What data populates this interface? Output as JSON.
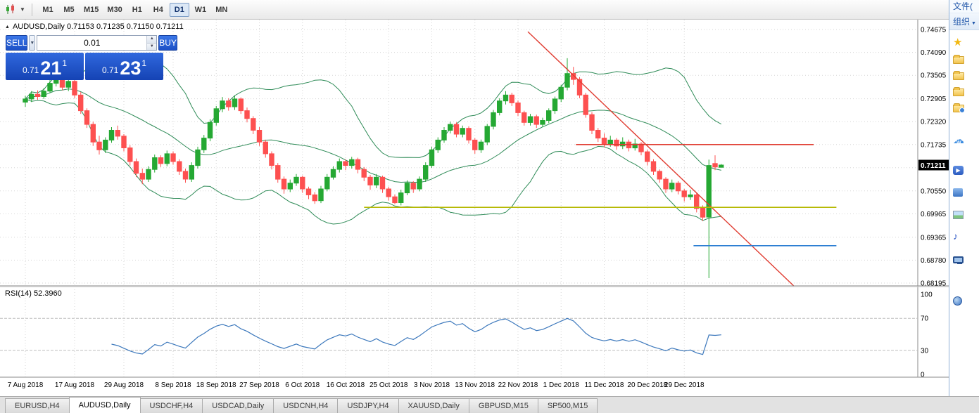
{
  "toolbar": {
    "timeframes": [
      "M1",
      "M5",
      "M15",
      "M30",
      "H1",
      "H4",
      "D1",
      "W1",
      "MN"
    ],
    "active": "D1"
  },
  "chart": {
    "title": "AUDUSD,Daily 0.71153 0.71235 0.71150 0.71211"
  },
  "trade_panel": {
    "sell_label": "SELL",
    "buy_label": "BUY",
    "volume": "0.01",
    "sell_price_prefix": "0.71",
    "sell_price_big": "21",
    "sell_price_sup": "1",
    "buy_price_prefix": "0.71",
    "buy_price_big": "23",
    "buy_price_sup": "1"
  },
  "price_axis": [
    "0.74675",
    "0.74090",
    "0.73505",
    "0.72905",
    "0.72320",
    "0.71735",
    "0.70550",
    "0.69965",
    "0.69365",
    "0.68780",
    "0.68195"
  ],
  "current_price": "0.71211",
  "rsi": {
    "label": "RSI(14) 52.3960",
    "levels": [
      "100",
      "70",
      "30",
      "0"
    ]
  },
  "tabs": {
    "items": [
      "EURUSD,H4",
      "AUDUSD,Daily",
      "USDCHF,H4",
      "USDCAD,Daily",
      "USDCNH,H4",
      "USDJPY,H4",
      "XAUUSD,Daily",
      "GBPUSD,M15",
      "SP500,M15"
    ],
    "active_index": 1
  },
  "explorer": {
    "menu_label": "文件(",
    "toolbar_label": "组织",
    "items": [
      {
        "icon": "star",
        "gap": 4
      },
      {
        "icon": "folder",
        "gap": 0
      },
      {
        "icon": "folder",
        "gap": 0
      },
      {
        "icon": "folder",
        "gap": 0
      },
      {
        "icon": "folder-badge",
        "gap": 0
      },
      {
        "icon": "cloud",
        "gap": 24
      },
      {
        "icon": "video",
        "gap": 19
      },
      {
        "icon": "shortcut",
        "gap": 8
      },
      {
        "icon": "picture",
        "gap": 9
      },
      {
        "icon": "music",
        "gap": 9
      },
      {
        "icon": "computer",
        "gap": 9
      },
      {
        "icon": "network",
        "gap": 36
      }
    ]
  },
  "chart_data": {
    "type": "candlestick",
    "symbol": "AUDUSD",
    "period": "Daily",
    "colors": {
      "up": "#25a833",
      "down": "#fd5050",
      "bollinger": "#2e8b57",
      "rsi": "#3c78bc",
      "grid": "#d6d6d6"
    },
    "dates": [
      {
        "label": "7 Aug 2018",
        "i": 0
      },
      {
        "label": "17 Aug 2018",
        "i": 8
      },
      {
        "label": "29 Aug 2018",
        "i": 16
      },
      {
        "label": "8 Sep 2018",
        "i": 24
      },
      {
        "label": "18 Sep 2018",
        "i": 31
      },
      {
        "label": "27 Sep 2018",
        "i": 38
      },
      {
        "label": "6 Oct 2018",
        "i": 45
      },
      {
        "label": "16 Oct 2018",
        "i": 52
      },
      {
        "label": "25 Oct 2018",
        "i": 59
      },
      {
        "label": "3 Nov 2018",
        "i": 66
      },
      {
        "label": "13 Nov 2018",
        "i": 73
      },
      {
        "label": "22 Nov 2018",
        "i": 80
      },
      {
        "label": "1 Dec 2018",
        "i": 87
      },
      {
        "label": "11 Dec 2018",
        "i": 94
      },
      {
        "label": "20 Dec 2018",
        "i": 101
      },
      {
        "label": "29 Dec 2018",
        "i": 107
      }
    ],
    "objects": {
      "trendline": {
        "i1": 81.6,
        "p1": 0.7462,
        "i2": 124.8,
        "p2": 0.6812,
        "color": "#e03c31"
      },
      "hlines": [
        {
          "name": "resistance-line",
          "price": 0.71735,
          "i1": 89.4,
          "i2": 128.0,
          "color": "#e03c31"
        },
        {
          "name": "support-line",
          "price": 0.7013,
          "i1": 55.0,
          "i2": 131.7,
          "color": "#b5b800"
        },
        {
          "name": "target-line",
          "price": 0.6915,
          "i1": 108.5,
          "i2": 131.7,
          "color": "#2d7fd3"
        }
      ]
    },
    "candles": [
      [
        0.7282,
        0.7298,
        0.727,
        0.729
      ],
      [
        0.729,
        0.731,
        0.7282,
        0.7302
      ],
      [
        0.7302,
        0.7312,
        0.7288,
        0.7296
      ],
      [
        0.7296,
        0.7318,
        0.729,
        0.731
      ],
      [
        0.731,
        0.7338,
        0.7305,
        0.733
      ],
      [
        0.733,
        0.735,
        0.7322,
        0.7342
      ],
      [
        0.7342,
        0.7348,
        0.7312,
        0.732
      ],
      [
        0.732,
        0.7344,
        0.731,
        0.7335
      ],
      [
        0.7335,
        0.734,
        0.7292,
        0.73
      ],
      [
        0.73,
        0.7308,
        0.7252,
        0.726
      ],
      [
        0.726,
        0.7266,
        0.7216,
        0.7225
      ],
      [
        0.7225,
        0.7232,
        0.717,
        0.718
      ],
      [
        0.718,
        0.7196,
        0.7148,
        0.716
      ],
      [
        0.716,
        0.7192,
        0.7152,
        0.7185
      ],
      [
        0.7185,
        0.7218,
        0.7178,
        0.721
      ],
      [
        0.721,
        0.7222,
        0.7186,
        0.7195
      ],
      [
        0.7195,
        0.72,
        0.7156,
        0.7165
      ],
      [
        0.7165,
        0.7172,
        0.712,
        0.713
      ],
      [
        0.713,
        0.7138,
        0.709,
        0.71
      ],
      [
        0.71,
        0.7112,
        0.7072,
        0.7085
      ],
      [
        0.7085,
        0.7118,
        0.7078,
        0.711
      ],
      [
        0.711,
        0.7148,
        0.7102,
        0.714
      ],
      [
        0.714,
        0.7146,
        0.7116,
        0.7125
      ],
      [
        0.7125,
        0.7158,
        0.7118,
        0.715
      ],
      [
        0.715,
        0.7156,
        0.7122,
        0.713
      ],
      [
        0.713,
        0.7136,
        0.7096,
        0.7105
      ],
      [
        0.7105,
        0.7112,
        0.7076,
        0.7085
      ],
      [
        0.7085,
        0.7128,
        0.7078,
        0.712
      ],
      [
        0.712,
        0.7168,
        0.7112,
        0.716
      ],
      [
        0.716,
        0.7198,
        0.7152,
        0.719
      ],
      [
        0.719,
        0.7238,
        0.7182,
        0.723
      ],
      [
        0.723,
        0.7272,
        0.7222,
        0.7265
      ],
      [
        0.7265,
        0.7295,
        0.7256,
        0.7285
      ],
      [
        0.7285,
        0.7292,
        0.726,
        0.727
      ],
      [
        0.727,
        0.7298,
        0.7262,
        0.729
      ],
      [
        0.729,
        0.7294,
        0.7252,
        0.726
      ],
      [
        0.726,
        0.7268,
        0.723,
        0.724
      ],
      [
        0.724,
        0.7246,
        0.72,
        0.721
      ],
      [
        0.721,
        0.7218,
        0.717,
        0.718
      ],
      [
        0.718,
        0.7186,
        0.714,
        0.715
      ],
      [
        0.715,
        0.7156,
        0.711,
        0.712
      ],
      [
        0.712,
        0.7126,
        0.7076,
        0.7085
      ],
      [
        0.7085,
        0.7092,
        0.7048,
        0.706
      ],
      [
        0.706,
        0.7084,
        0.7052,
        0.7075
      ],
      [
        0.7075,
        0.7098,
        0.7068,
        0.709
      ],
      [
        0.709,
        0.7094,
        0.705,
        0.706
      ],
      [
        0.706,
        0.7066,
        0.7034,
        0.7045
      ],
      [
        0.7045,
        0.7052,
        0.7022,
        0.703
      ],
      [
        0.703,
        0.7068,
        0.7024,
        0.706
      ],
      [
        0.706,
        0.7098,
        0.7054,
        0.709
      ],
      [
        0.709,
        0.7118,
        0.7084,
        0.711
      ],
      [
        0.711,
        0.7138,
        0.7102,
        0.713
      ],
      [
        0.713,
        0.7136,
        0.7108,
        0.712
      ],
      [
        0.712,
        0.7142,
        0.7112,
        0.7135
      ],
      [
        0.7135,
        0.714,
        0.71,
        0.711
      ],
      [
        0.711,
        0.7116,
        0.708,
        0.709
      ],
      [
        0.709,
        0.7096,
        0.7058,
        0.707
      ],
      [
        0.707,
        0.7098,
        0.7062,
        0.709
      ],
      [
        0.709,
        0.7094,
        0.705,
        0.706
      ],
      [
        0.706,
        0.7066,
        0.703,
        0.704
      ],
      [
        0.704,
        0.7046,
        0.7021,
        0.7025
      ],
      [
        0.7025,
        0.7058,
        0.7018,
        0.705
      ],
      [
        0.705,
        0.7082,
        0.7044,
        0.7075
      ],
      [
        0.7075,
        0.708,
        0.705,
        0.706
      ],
      [
        0.706,
        0.7092,
        0.7054,
        0.7085
      ],
      [
        0.7085,
        0.7128,
        0.7078,
        0.712
      ],
      [
        0.712,
        0.7168,
        0.7114,
        0.716
      ],
      [
        0.716,
        0.7192,
        0.7152,
        0.7185
      ],
      [
        0.7185,
        0.7218,
        0.7178,
        0.721
      ],
      [
        0.721,
        0.7232,
        0.7202,
        0.7225
      ],
      [
        0.7225,
        0.723,
        0.7192,
        0.72
      ],
      [
        0.72,
        0.7222,
        0.7192,
        0.7215
      ],
      [
        0.7215,
        0.722,
        0.7176,
        0.7185
      ],
      [
        0.7185,
        0.719,
        0.715,
        0.716
      ],
      [
        0.716,
        0.7186,
        0.7152,
        0.718
      ],
      [
        0.718,
        0.7226,
        0.7172,
        0.722
      ],
      [
        0.722,
        0.7262,
        0.7212,
        0.7255
      ],
      [
        0.7255,
        0.7292,
        0.7248,
        0.7285
      ],
      [
        0.7285,
        0.731,
        0.7276,
        0.73
      ],
      [
        0.73,
        0.7306,
        0.7272,
        0.728
      ],
      [
        0.728,
        0.7286,
        0.7246,
        0.7255
      ],
      [
        0.7255,
        0.726,
        0.7222,
        0.723
      ],
      [
        0.723,
        0.7252,
        0.7222,
        0.7245
      ],
      [
        0.7245,
        0.725,
        0.7216,
        0.7225
      ],
      [
        0.7225,
        0.7242,
        0.7218,
        0.7235
      ],
      [
        0.7235,
        0.7266,
        0.7228,
        0.726
      ],
      [
        0.726,
        0.7296,
        0.7252,
        0.729
      ],
      [
        0.729,
        0.7326,
        0.7282,
        0.732
      ],
      [
        0.732,
        0.7394,
        0.7312,
        0.7355
      ],
      [
        0.7355,
        0.7372,
        0.7326,
        0.734
      ],
      [
        0.734,
        0.7346,
        0.7292,
        0.73
      ],
      [
        0.73,
        0.7306,
        0.7242,
        0.725
      ],
      [
        0.725,
        0.7256,
        0.72,
        0.721
      ],
      [
        0.721,
        0.7216,
        0.718,
        0.719
      ],
      [
        0.719,
        0.7202,
        0.7166,
        0.7175
      ],
      [
        0.7175,
        0.7196,
        0.7168,
        0.7185
      ],
      [
        0.7185,
        0.719,
        0.716,
        0.717
      ],
      [
        0.717,
        0.7192,
        0.7162,
        0.718
      ],
      [
        0.718,
        0.7186,
        0.7156,
        0.7165
      ],
      [
        0.7165,
        0.7188,
        0.7158,
        0.7175
      ],
      [
        0.7175,
        0.718,
        0.7146,
        0.7155
      ],
      [
        0.7155,
        0.716,
        0.712,
        0.713
      ],
      [
        0.713,
        0.7136,
        0.7096,
        0.7105
      ],
      [
        0.7105,
        0.711,
        0.7076,
        0.7085
      ],
      [
        0.7085,
        0.709,
        0.705,
        0.706
      ],
      [
        0.706,
        0.7084,
        0.7052,
        0.7075
      ],
      [
        0.7075,
        0.708,
        0.7046,
        0.7055
      ],
      [
        0.7055,
        0.706,
        0.7028,
        0.704
      ],
      [
        0.704,
        0.7058,
        0.7032,
        0.7045
      ],
      [
        0.7045,
        0.705,
        0.7,
        0.701
      ],
      [
        0.7012,
        0.7018,
        0.6978,
        0.6988
      ],
      [
        0.6988,
        0.7135,
        0.6832,
        0.712
      ],
      [
        0.7125,
        0.7146,
        0.7108,
        0.7116
      ],
      [
        0.71153,
        0.71235,
        0.7115,
        0.71211
      ]
    ]
  }
}
